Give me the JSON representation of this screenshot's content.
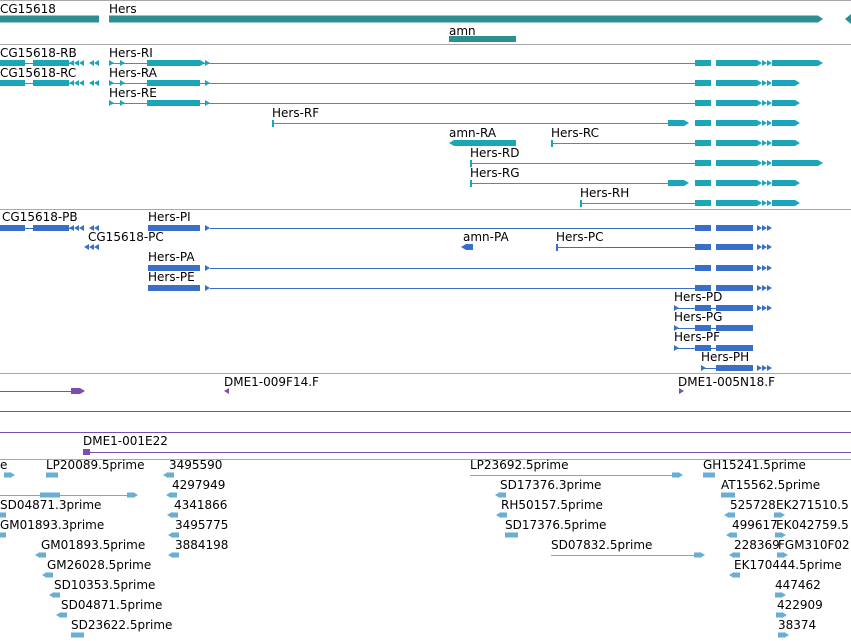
{
  "colors": {
    "gene": "#2e8f90",
    "mrna": "#1aa6b8",
    "protein": "#3a6fc9",
    "marker": "#7a4fb0",
    "est": "#6aaed6",
    "divider": "#a9a9a9"
  },
  "icons": [
    "strand-arrow-icon",
    "exon-block-icon",
    "intron-line-icon"
  ],
  "genes_track": {
    "labels": {
      "cg15618": "CG15618",
      "hers": "Hers",
      "amn": "amn"
    }
  },
  "mrna_track": {
    "labels": {
      "cg15618_rb": "CG15618-RB",
      "cg15618_rc": "CG15618-RC",
      "hers_ri": "Hers-RI",
      "hers_ra": "Hers-RA",
      "hers_re": "Hers-RE",
      "hers_rf": "Hers-RF",
      "amn_ra": "amn-RA",
      "hers_rc": "Hers-RC",
      "hers_rd": "Hers-RD",
      "hers_rg": "Hers-RG",
      "hers_rh": "Hers-RH"
    }
  },
  "protein_track": {
    "labels": {
      "cg15618_pb": "CG15618-PB",
      "cg15618_pc": "CG15618-PC",
      "hers_pi": "Hers-PI",
      "amn_pa": "amn-PA",
      "hers_pc": "Hers-PC",
      "hers_pa": "Hers-PA",
      "hers_pe": "Hers-PE",
      "hers_pd": "Hers-PD",
      "hers_pg": "Hers-PG",
      "hers_pf": "Hers-PF",
      "hers_ph": "Hers-PH"
    }
  },
  "marker_track": {
    "labels": {
      "dme1_009f14": "DME1-009F14.F",
      "dme1_005n18": "DME1-005N18.F",
      "dme1_001e22": "DME1-001E22"
    }
  },
  "est_track": {
    "labels": {
      "e0": "e",
      "lp20089": "LP20089.5prime",
      "n3495590": "3495590",
      "lp23692": "LP23692.5prime",
      "gh15241": "GH15241.5prime",
      "n4297949": "4297949",
      "sd17376_3": "SD17376.3prime",
      "at15562": "AT15562.5prime",
      "sd04871_3": "SD04871.3prime",
      "n4341866": "4341866",
      "rh50157": "RH50157.5prime",
      "n525728": "525728",
      "ek271510": "EK271510.5",
      "gm01893_3": "GM01893.3prime",
      "n3495775": "3495775",
      "sd17376_5": "SD17376.5prime",
      "n499617": "499617",
      "ek042759": "EK042759.5",
      "gm01893_5": "GM01893.5prime",
      "n3884198": "3884198",
      "sd07832": "SD07832.5prime",
      "n228369": "228369",
      "fgm310f02": "FGM310F02",
      "gm26028": "GM26028.5prime",
      "ek170444": "EK170444.5prime",
      "sd10353": "SD10353.5prime",
      "n447462": "447462",
      "sd04871_5": "SD04871.5prime",
      "n422909": "422909",
      "sd23622": "SD23622.5prime",
      "n38374": "38374"
    }
  }
}
